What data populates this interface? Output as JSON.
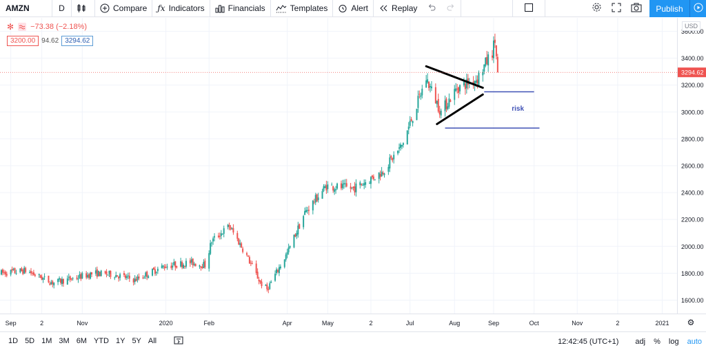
{
  "toolbar": {
    "symbol": "AMZN",
    "interval": "D",
    "compare": "Compare",
    "indicators": "Indicators",
    "financials": "Financials",
    "templates": "Templates",
    "alert": "Alert",
    "replay": "Replay",
    "publish": "Publish"
  },
  "legend": {
    "change": "−73.38 (−2.18%)",
    "bid": "3200.00",
    "spread": "94.62",
    "ask": "3294.62"
  },
  "currency": "USD",
  "last_price": "3294.62",
  "bottombar": {
    "ranges": [
      "1D",
      "5D",
      "1M",
      "3M",
      "6M",
      "YTD",
      "1Y",
      "5Y",
      "All"
    ],
    "time": "12:42:45 (UTC+1)",
    "adj": "adj",
    "percent": "%",
    "log": "log",
    "auto": "auto"
  },
  "colors": {
    "up": "#26a69a",
    "down": "#ef5350",
    "accent": "#2196f3",
    "annotation": "#3f51b5"
  },
  "chart_data": {
    "type": "candlestick",
    "symbol": "AMZN",
    "ylim": [
      1500,
      3700
    ],
    "y_ticks": [
      1600,
      1800,
      2000,
      2200,
      2400,
      2600,
      2800,
      3000,
      3200,
      3400,
      3600
    ],
    "y_tick_labels": [
      "1600.00",
      "1800.00",
      "2000.00",
      "2200.00",
      "2400.00",
      "2600.00",
      "2800.00",
      "3000.00",
      "3200.00",
      "3400.00",
      "3600.00"
    ],
    "x_range": [
      "2019-09-01",
      "2021-01-15"
    ],
    "x_ticks": [
      {
        "label": "Sep",
        "date": "2019-09-09"
      },
      {
        "label": "2",
        "date": "2019-10-02"
      },
      {
        "label": "Nov",
        "date": "2019-11-01"
      },
      {
        "label": "2020",
        "date": "2020-01-02"
      },
      {
        "label": "Feb",
        "date": "2020-02-03"
      },
      {
        "label": "Apr",
        "date": "2020-04-01"
      },
      {
        "label": "May",
        "date": "2020-05-01"
      },
      {
        "label": "2",
        "date": "2020-06-02"
      },
      {
        "label": "Jul",
        "date": "2020-07-01"
      },
      {
        "label": "Aug",
        "date": "2020-08-03"
      },
      {
        "label": "Sep",
        "date": "2020-09-01"
      },
      {
        "label": "Oct",
        "date": "2020-10-01"
      },
      {
        "label": "Nov",
        "date": "2020-11-02"
      },
      {
        "label": "2",
        "date": "2020-12-02"
      },
      {
        "label": "2021",
        "date": "2021-01-04"
      }
    ],
    "price_path": [
      [
        "2019-09-01",
        1800
      ],
      [
        "2019-09-20",
        1820
      ],
      [
        "2019-10-10",
        1730
      ],
      [
        "2019-10-25",
        1760
      ],
      [
        "2019-11-10",
        1800
      ],
      [
        "2019-11-25",
        1790
      ],
      [
        "2019-12-10",
        1750
      ],
      [
        "2019-12-31",
        1850
      ],
      [
        "2020-01-20",
        1880
      ],
      [
        "2020-01-31",
        1860
      ],
      [
        "2020-02-05",
        2040
      ],
      [
        "2020-02-18",
        2150
      ],
      [
        "2020-03-01",
        1950
      ],
      [
        "2020-03-12",
        1730
      ],
      [
        "2020-03-17",
        1680
      ],
      [
        "2020-04-01",
        1950
      ],
      [
        "2020-04-14",
        2250
      ],
      [
        "2020-04-30",
        2450
      ],
      [
        "2020-05-20",
        2430
      ],
      [
        "2020-06-10",
        2550
      ],
      [
        "2020-06-25",
        2750
      ],
      [
        "2020-07-06",
        3050
      ],
      [
        "2020-07-13",
        3250
      ],
      [
        "2020-07-24",
        3000
      ],
      [
        "2020-08-05",
        3180
      ],
      [
        "2020-08-20",
        3250
      ],
      [
        "2020-08-31",
        3450
      ],
      [
        "2020-09-02",
        3530
      ],
      [
        "2020-09-04",
        3294.62
      ]
    ],
    "last_price": 3294.62,
    "annotations": {
      "triangle_upper": [
        [
          "2020-07-13",
          3340
        ],
        [
          "2020-08-24",
          3180
        ]
      ],
      "triangle_lower": [
        [
          "2020-07-21",
          2910
        ],
        [
          "2020-08-24",
          3130
        ]
      ],
      "level_high": {
        "price": 3150,
        "from": "2020-08-25",
        "to": "2020-10-01"
      },
      "level_low": {
        "price": 2880,
        "from": "2020-07-27",
        "to": "2020-10-05"
      },
      "text": "risk",
      "text_at": [
        "2020-09-19",
        3010
      ]
    }
  }
}
